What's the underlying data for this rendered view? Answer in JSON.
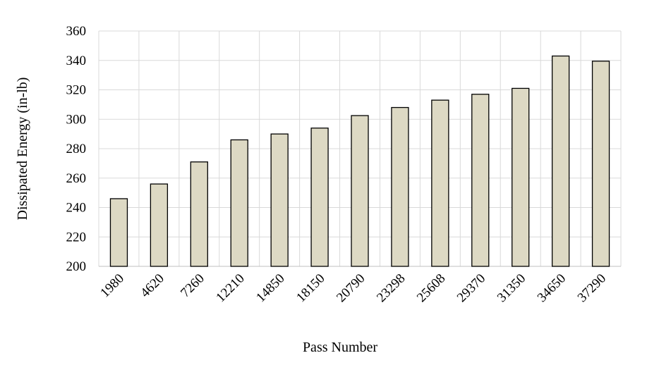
{
  "chart_data": {
    "type": "bar",
    "categories": [
      "1980",
      "4620",
      "7260",
      "12210",
      "14850",
      "18150",
      "20790",
      "23298",
      "25608",
      "29370",
      "31350",
      "34650",
      "37290"
    ],
    "values": [
      246,
      256,
      271,
      286,
      290,
      294,
      302.5,
      308,
      313,
      317,
      321,
      343,
      339.5
    ],
    "xlabel": "Pass Number",
    "ylabel": "Dissipated Energy (in-lb)",
    "ylim": [
      200,
      360
    ],
    "yticks": [
      200,
      220,
      240,
      260,
      280,
      300,
      320,
      340,
      360
    ],
    "grid": true,
    "colors": {
      "bar_fill": "#ddd9c4",
      "bar_stroke": "#000000",
      "grid": "#d9d9d9"
    }
  }
}
